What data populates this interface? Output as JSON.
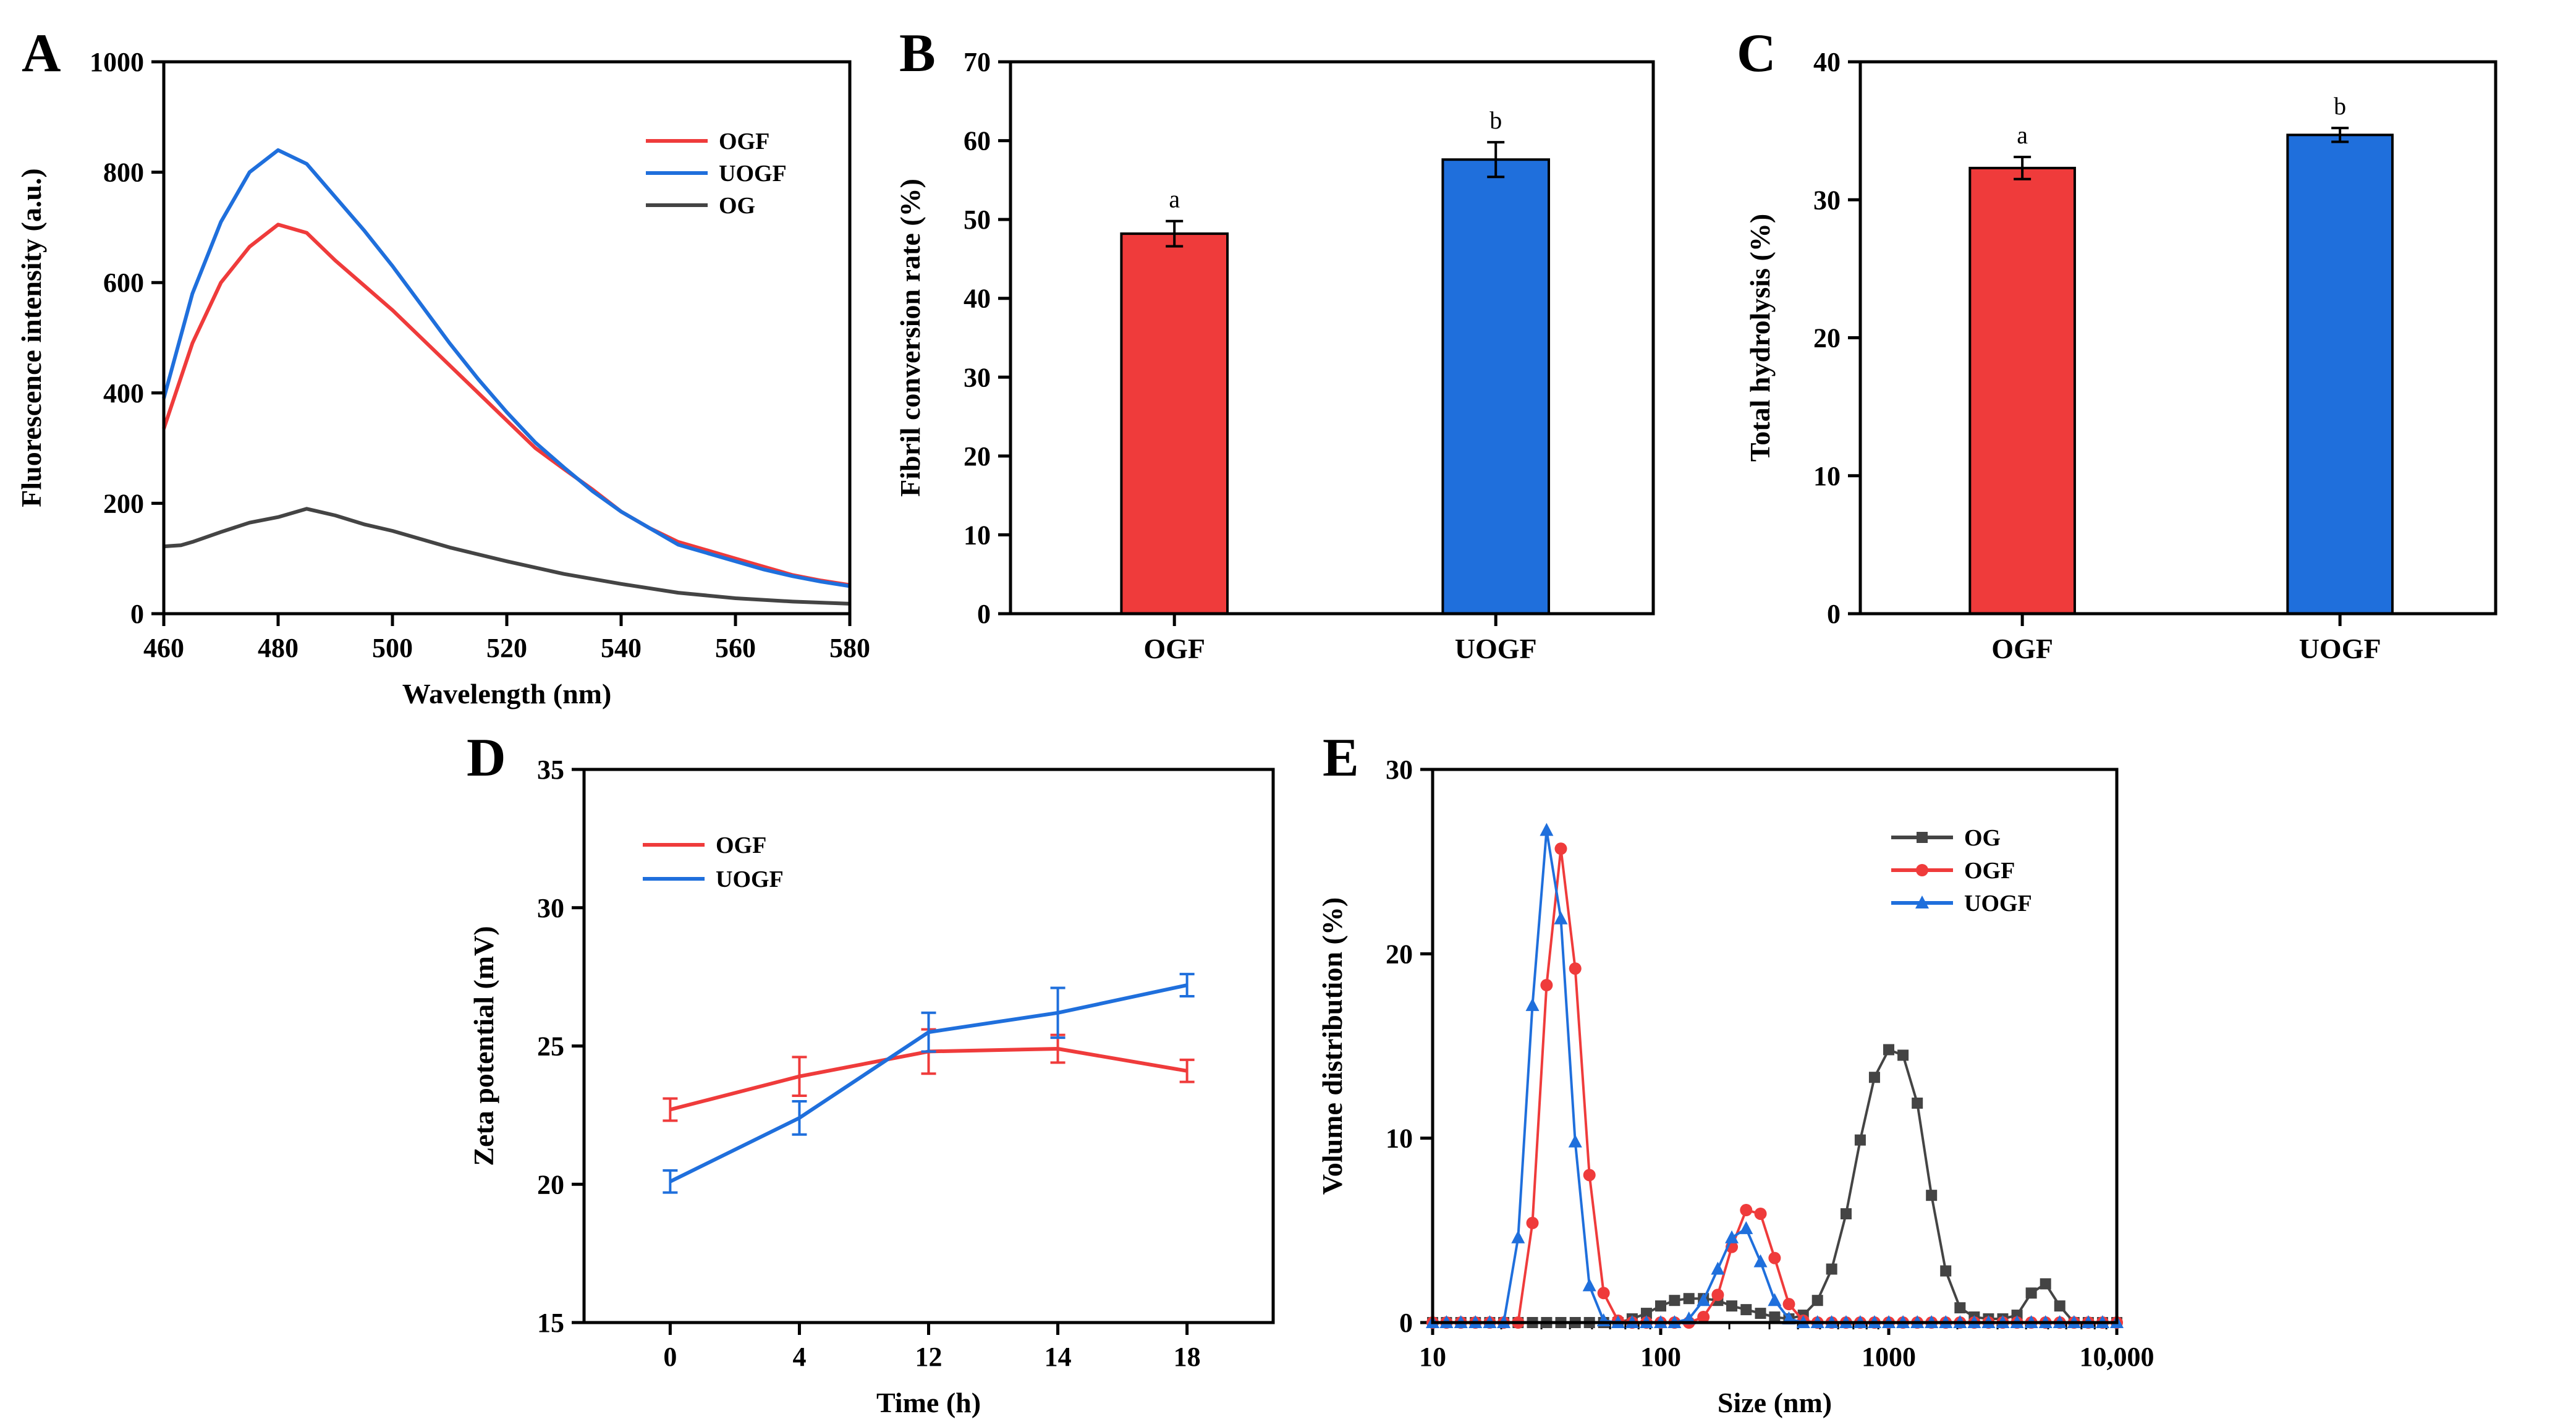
{
  "colors": {
    "ogf": "#ef3b3b",
    "uogf": "#1f6fdc",
    "og": "#444444"
  },
  "chart_data": [
    {
      "panel": "A",
      "type": "line",
      "xlabel": "Wavelength (nm)",
      "ylabel": "Fluorescence intensity (a.u.)",
      "xlim": [
        460,
        580
      ],
      "ylim": [
        0,
        1000
      ],
      "xticks": [
        460,
        480,
        500,
        520,
        540,
        560,
        580
      ],
      "yticks": [
        0,
        200,
        400,
        600,
        800,
        1000
      ],
      "legend": {
        "position": "top-right",
        "entries": [
          "OGF",
          "UOGF",
          "OG"
        ]
      },
      "series": [
        {
          "name": "OGF",
          "color": "#ef3b3b",
          "x": [
            460,
            465,
            470,
            475,
            480,
            485,
            490,
            495,
            500,
            505,
            510,
            515,
            520,
            525,
            530,
            535,
            540,
            545,
            550,
            555,
            560,
            565,
            570,
            575,
            580
          ],
          "y": [
            335,
            490,
            600,
            665,
            705,
            690,
            640,
            595,
            550,
            500,
            450,
            400,
            350,
            300,
            262,
            225,
            185,
            155,
            130,
            115,
            100,
            85,
            70,
            60,
            52
          ]
        },
        {
          "name": "UOGF",
          "color": "#1f6fdc",
          "x": [
            460,
            465,
            470,
            475,
            480,
            485,
            490,
            495,
            500,
            505,
            510,
            515,
            520,
            525,
            530,
            535,
            540,
            545,
            550,
            555,
            560,
            565,
            570,
            575,
            580
          ],
          "y": [
            390,
            580,
            710,
            800,
            840,
            815,
            755,
            695,
            630,
            560,
            490,
            425,
            365,
            310,
            265,
            222,
            185,
            155,
            125,
            110,
            95,
            80,
            68,
            58,
            50
          ]
        },
        {
          "name": "OG",
          "color": "#444444",
          "x": [
            460,
            463,
            465,
            470,
            475,
            480,
            485,
            490,
            495,
            500,
            510,
            520,
            530,
            540,
            550,
            560,
            570,
            580
          ],
          "y": [
            122,
            124,
            130,
            148,
            165,
            175,
            190,
            178,
            162,
            150,
            120,
            95,
            72,
            54,
            38,
            28,
            22,
            18
          ]
        }
      ]
    },
    {
      "panel": "B",
      "type": "bar",
      "categories": [
        "OGF",
        "UOGF"
      ],
      "values": [
        48.2,
        57.6
      ],
      "errors": [
        1.6,
        2.2
      ],
      "significance": [
        "a",
        "b"
      ],
      "bar_colors": [
        "#ef3b3b",
        "#1f6fdc"
      ],
      "ylabel": "Fibril conversion rate (%)",
      "ylim": [
        0,
        70
      ],
      "yticks": [
        0,
        10,
        20,
        30,
        40,
        50,
        60,
        70
      ]
    },
    {
      "panel": "C",
      "type": "bar",
      "categories": [
        "OGF",
        "UOGF"
      ],
      "values": [
        32.3,
        34.7
      ],
      "errors": [
        0.8,
        0.5
      ],
      "significance": [
        "a",
        "b"
      ],
      "bar_colors": [
        "#ef3b3b",
        "#1f6fdc"
      ],
      "ylabel": "Total hydrolysis (%)",
      "ylim": [
        0,
        40
      ],
      "yticks": [
        0,
        10,
        20,
        30,
        40
      ]
    },
    {
      "panel": "D",
      "type": "line",
      "xlabel": "Time (h)",
      "ylabel": "Zeta potential (mV)",
      "categories": [
        "0",
        "4",
        "12",
        "14",
        "18"
      ],
      "ylim": [
        15,
        35
      ],
      "yticks": [
        15,
        20,
        25,
        30,
        35
      ],
      "legend": {
        "position": "top-left",
        "entries": [
          "OGF",
          "UOGF"
        ]
      },
      "series": [
        {
          "name": "OGF",
          "color": "#ef3b3b",
          "values": [
            22.7,
            23.9,
            24.8,
            24.9,
            24.1
          ],
          "errors": [
            0.4,
            0.7,
            0.8,
            0.5,
            0.4
          ]
        },
        {
          "name": "UOGF",
          "color": "#1f6fdc",
          "values": [
            20.1,
            22.4,
            25.5,
            26.2,
            27.2
          ],
          "errors": [
            0.4,
            0.6,
            0.7,
            0.9,
            0.4
          ]
        }
      ]
    },
    {
      "panel": "E",
      "type": "line",
      "xscale": "log",
      "xlabel": "Size (nm)",
      "ylabel": "Volume distribution (%)",
      "xlim": [
        10,
        10000
      ],
      "ylim": [
        0,
        30
      ],
      "xticks": [
        10,
        100,
        1000,
        10000
      ],
      "xtick_labels": [
        "10",
        "100",
        "1000",
        "10,000"
      ],
      "yticks": [
        0,
        10,
        20,
        30
      ],
      "legend": {
        "position": "top-right",
        "entries": [
          "OG",
          "OGF",
          "UOGF"
        ]
      },
      "series": [
        {
          "name": "OG",
          "color": "#444444",
          "marker": "square",
          "x": [
            10,
            11.5,
            13.3,
            15.4,
            17.8,
            20.5,
            23.7,
            27.4,
            31.6,
            36.5,
            42.2,
            48.7,
            56.2,
            65,
            75,
            86.6,
            100,
            115,
            133,
            154,
            178,
            205,
            237,
            274,
            316,
            365,
            422,
            487,
            562,
            650,
            750,
            866,
            1000,
            1155,
            1334,
            1540,
            1778,
            2054,
            2371,
            2738,
            3162,
            3652,
            4217,
            4870,
            5623,
            6494,
            7500,
            8660,
            10000
          ],
          "y": [
            0,
            0,
            0,
            0,
            0,
            0,
            0,
            0,
            0,
            0,
            0,
            0,
            0,
            0,
            0.2,
            0.5,
            0.9,
            1.2,
            1.3,
            1.3,
            1.2,
            0.9,
            0.7,
            0.5,
            0.3,
            0.2,
            0.4,
            1.2,
            2.9,
            5.9,
            9.9,
            13.3,
            14.8,
            14.5,
            11.9,
            6.9,
            2.8,
            0.8,
            0.3,
            0.2,
            0.2,
            0.4,
            1.6,
            2.1,
            0.9,
            0,
            0,
            0,
            0
          ]
        },
        {
          "name": "OGF",
          "color": "#ef3b3b",
          "marker": "circle",
          "x": [
            10,
            11.5,
            13.3,
            15.4,
            17.8,
            20.5,
            23.7,
            27.4,
            31.6,
            36.5,
            42.2,
            48.7,
            56.2,
            65,
            75,
            86.6,
            100,
            115,
            133,
            154,
            178,
            205,
            237,
            274,
            316,
            365,
            422,
            487,
            562,
            650,
            750,
            866,
            1000,
            1155,
            1334,
            1540,
            1778,
            2054,
            2371,
            2738,
            3162,
            3652,
            4217,
            4870,
            5623,
            6494,
            7500,
            8660,
            10000
          ],
          "y": [
            0,
            0,
            0,
            0,
            0,
            0,
            0,
            5.4,
            18.3,
            25.7,
            19.2,
            8,
            1.6,
            0.1,
            0,
            0,
            0,
            0,
            0,
            0.3,
            1.5,
            4.1,
            6.1,
            5.9,
            3.5,
            1,
            0.1,
            0,
            0,
            0,
            0,
            0,
            0,
            0,
            0,
            0,
            0,
            0,
            0,
            0,
            0,
            0,
            0,
            0,
            0,
            0,
            0,
            0,
            0
          ]
        },
        {
          "name": "UOGF",
          "color": "#1f6fdc",
          "marker": "triangle",
          "x": [
            10,
            11.5,
            13.3,
            15.4,
            17.8,
            20.5,
            23.7,
            27.4,
            31.6,
            36.5,
            42.2,
            48.7,
            56.2,
            65,
            75,
            86.6,
            100,
            115,
            133,
            154,
            178,
            205,
            237,
            274,
            316,
            365,
            422,
            487,
            562,
            650,
            750,
            866,
            1000,
            1155,
            1334,
            1540,
            1778,
            2054,
            2371,
            2738,
            3162,
            3652,
            4217,
            4870,
            5623,
            6494,
            7500,
            8660,
            10000
          ],
          "y": [
            0,
            0,
            0,
            0,
            0,
            0,
            4.6,
            17.2,
            26.7,
            21.9,
            9.8,
            2,
            0.1,
            0,
            0,
            0,
            0,
            0,
            0.2,
            1.2,
            2.9,
            4.6,
            5.1,
            3.3,
            1.2,
            0.2,
            0,
            0,
            0,
            0,
            0,
            0,
            0,
            0,
            0,
            0,
            0,
            0,
            0,
            0,
            0,
            0,
            0,
            0,
            0,
            0,
            0,
            0,
            0
          ]
        }
      ]
    }
  ]
}
